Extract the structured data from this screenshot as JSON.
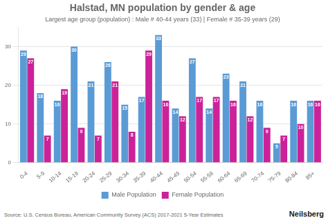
{
  "chart_data": {
    "type": "bar",
    "title": "Halstad, MN population by gender & age",
    "subtitle": "Largest age group (population) : Male # 40-44 years (33) | Female # 35-39 years (29)",
    "annotations": [
      "Source: U.S. Census Bureau, American Community Survey (ACS) 2017-2021 5-Year Estimates",
      "Neilsberg"
    ],
    "categories": [
      "0-4",
      "5-9",
      "10-14",
      "15-19",
      "20-24",
      "25-29",
      "30-34",
      "35-39",
      "40-44",
      "45-49",
      "50-54",
      "55-59",
      "60-64",
      "65-69",
      "70-74",
      "75-79",
      "80-84",
      "85+"
    ],
    "series": [
      {
        "name": "Male Population",
        "color": "#5B9BD5",
        "values": [
          29,
          18,
          16,
          30,
          21,
          26,
          15,
          17,
          33,
          14,
          27,
          14,
          23,
          21,
          16,
          5,
          16,
          16
        ]
      },
      {
        "name": "Female Population",
        "color": "#CC2299",
        "values": [
          27,
          7,
          19,
          9,
          7,
          21,
          8,
          29,
          16,
          12,
          17,
          17,
          16,
          12,
          9,
          7,
          10,
          16
        ]
      }
    ],
    "ylim": [
      0,
      35
    ],
    "yticks": [
      0,
      10,
      20,
      30
    ],
    "grid": true,
    "legend": "bottom",
    "data_labels": true
  }
}
